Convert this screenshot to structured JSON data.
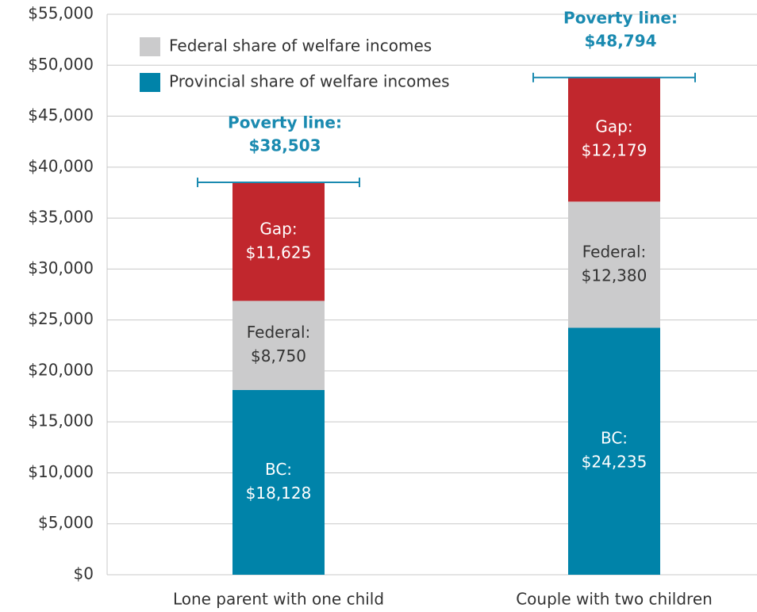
{
  "chart_data": {
    "type": "stacked-bar",
    "categories": [
      "Lone parent with one child",
      "Couple with two children"
    ],
    "series": [
      {
        "name": "Provincial share of welfare incomes",
        "label": "BC:",
        "color": "#0083a9",
        "label_color": "#ffffff",
        "values": [
          18128,
          24235
        ],
        "value_labels": [
          "$18,128",
          "$24,235"
        ]
      },
      {
        "name": "Federal share of welfare incomes",
        "label": "Federal:",
        "color": "#cbcbcc",
        "label_color": "#333333",
        "values": [
          8750,
          12380
        ],
        "value_labels": [
          "$8,750",
          "$12,380"
        ]
      },
      {
        "label": "Gap:",
        "color": "#c1272d",
        "label_color": "#ffffff",
        "values": [
          11625,
          12179
        ],
        "value_labels": [
          "$11,625",
          "$12,179"
        ]
      }
    ],
    "poverty_line": {
      "label": "Poverty line:",
      "color": "#1a8ab0",
      "values": [
        38503,
        48794
      ],
      "value_labels": [
        "$38,503",
        "$48,794"
      ]
    },
    "ylim": [
      0,
      55000
    ],
    "yticks": [
      {
        "value": 0,
        "label": "$0"
      },
      {
        "value": 5000,
        "label": "$5,000"
      },
      {
        "value": 10000,
        "label": "$10,000"
      },
      {
        "value": 15000,
        "label": "$15,000"
      },
      {
        "value": 20000,
        "label": "$20,000"
      },
      {
        "value": 25000,
        "label": "$25,000"
      },
      {
        "value": 30000,
        "label": "$30,000"
      },
      {
        "value": 35000,
        "label": "$35,000"
      },
      {
        "value": 40000,
        "label": "$40,000"
      },
      {
        "value": 45000,
        "label": "$45,000"
      },
      {
        "value": 50000,
        "label": "$50,000"
      },
      {
        "value": 55000,
        "label": "$55,000"
      }
    ],
    "grid": true,
    "legend": "top-left"
  }
}
